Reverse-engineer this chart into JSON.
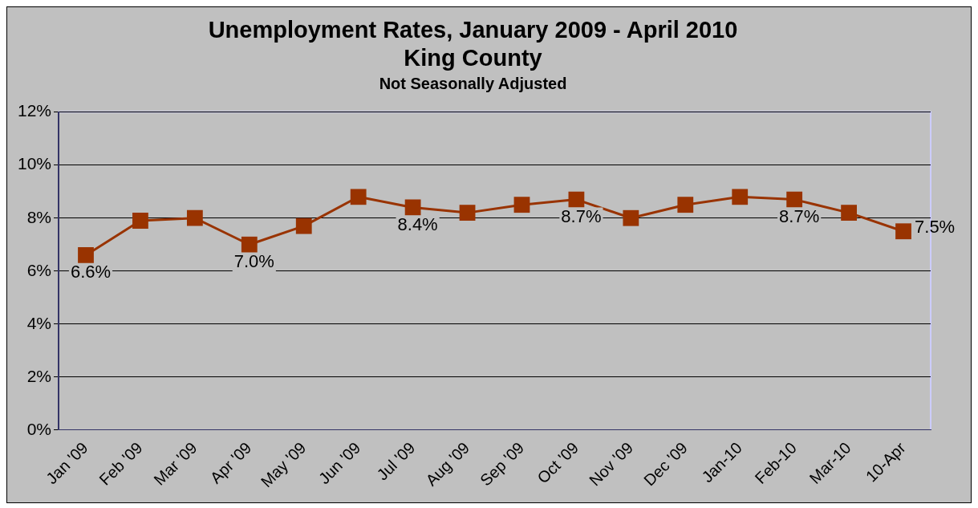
{
  "chart_data": {
    "type": "line",
    "title": "Unemployment Rates, January 2009 - April 2010\nKing County",
    "subtitle": "Not Seasonally Adjusted",
    "categories": [
      "Jan '09",
      "Feb '09",
      "Mar '09",
      "Apr '09",
      "May '09",
      "Jun '09",
      "Jul '09",
      "Aug '09",
      "Sep '09",
      "Oct '09",
      "Nov '09",
      "Dec '09",
      "Jan-10",
      "Feb-10",
      "Mar-10",
      "10-Apr"
    ],
    "series": [
      {
        "color": "#993300",
        "values": [
          6.6,
          7.9,
          8.0,
          7.0,
          7.7,
          8.8,
          8.4,
          8.2,
          8.5,
          8.7,
          8.0,
          8.5,
          8.8,
          8.7,
          8.2,
          7.5
        ],
        "value_labels": [
          "6.6%",
          null,
          null,
          "7.0%",
          null,
          null,
          "8.4%",
          null,
          null,
          "8.7%",
          null,
          null,
          null,
          "8.7%",
          null,
          "7.5%"
        ]
      }
    ],
    "ylim": [
      0,
      12
    ],
    "yticks": [
      {
        "value": 0,
        "label": "0%"
      },
      {
        "value": 2,
        "label": "2%"
      },
      {
        "value": 4,
        "label": "4%"
      },
      {
        "value": 6,
        "label": "6%"
      },
      {
        "value": 8,
        "label": "8%"
      },
      {
        "value": 10,
        "label": "10%"
      },
      {
        "value": 12,
        "label": "12%"
      }
    ],
    "grid": "y",
    "legend": false,
    "marker": "square",
    "line_style": "solid"
  }
}
